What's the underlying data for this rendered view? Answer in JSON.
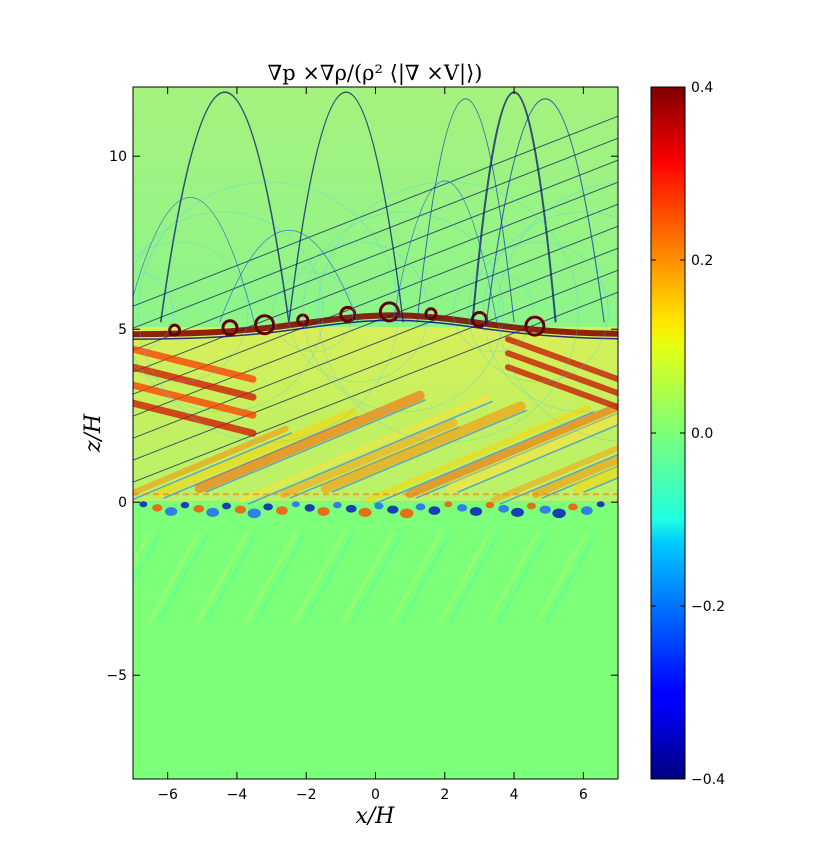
{
  "chart_data": {
    "type": "heatmap",
    "title": "∇p ×∇ρ/(ρ² ⟨|∇ ×V|⟩)",
    "xlabel": "x/H",
    "ylabel": "z/H",
    "xlim": [
      -7,
      7
    ],
    "ylim": [
      -8,
      12
    ],
    "xticks": [
      -6,
      -4,
      -2,
      0,
      2,
      4,
      6
    ],
    "yticks": [
      -5,
      0,
      5,
      10
    ],
    "xtick_labels": [
      "−6",
      "−4",
      "−2",
      "0",
      "2",
      "4",
      "6"
    ],
    "ytick_labels": [
      "−5",
      "0",
      "5",
      "10"
    ],
    "colorbar": {
      "range": [
        -0.4,
        0.4
      ],
      "ticks": [
        0.4,
        0.2,
        0.0,
        -0.2,
        -0.4
      ],
      "tick_labels": [
        "0.4",
        "0.2",
        "0.0",
        "−0.2",
        "−0.4"
      ],
      "colormap": "jet"
    },
    "features": {
      "interface_z": 5.0,
      "lower_interface_z": 0.0,
      "background_value": 0.0,
      "diagonal_bands_between": [
        0,
        5
      ],
      "shock_arcs_above": 5
    }
  },
  "colors": {
    "background": "#7fff7f",
    "positive_high": "#800000",
    "positive_mid": "#ff7f00",
    "negative_mid": "#007fff",
    "negative_high": "#000080"
  }
}
